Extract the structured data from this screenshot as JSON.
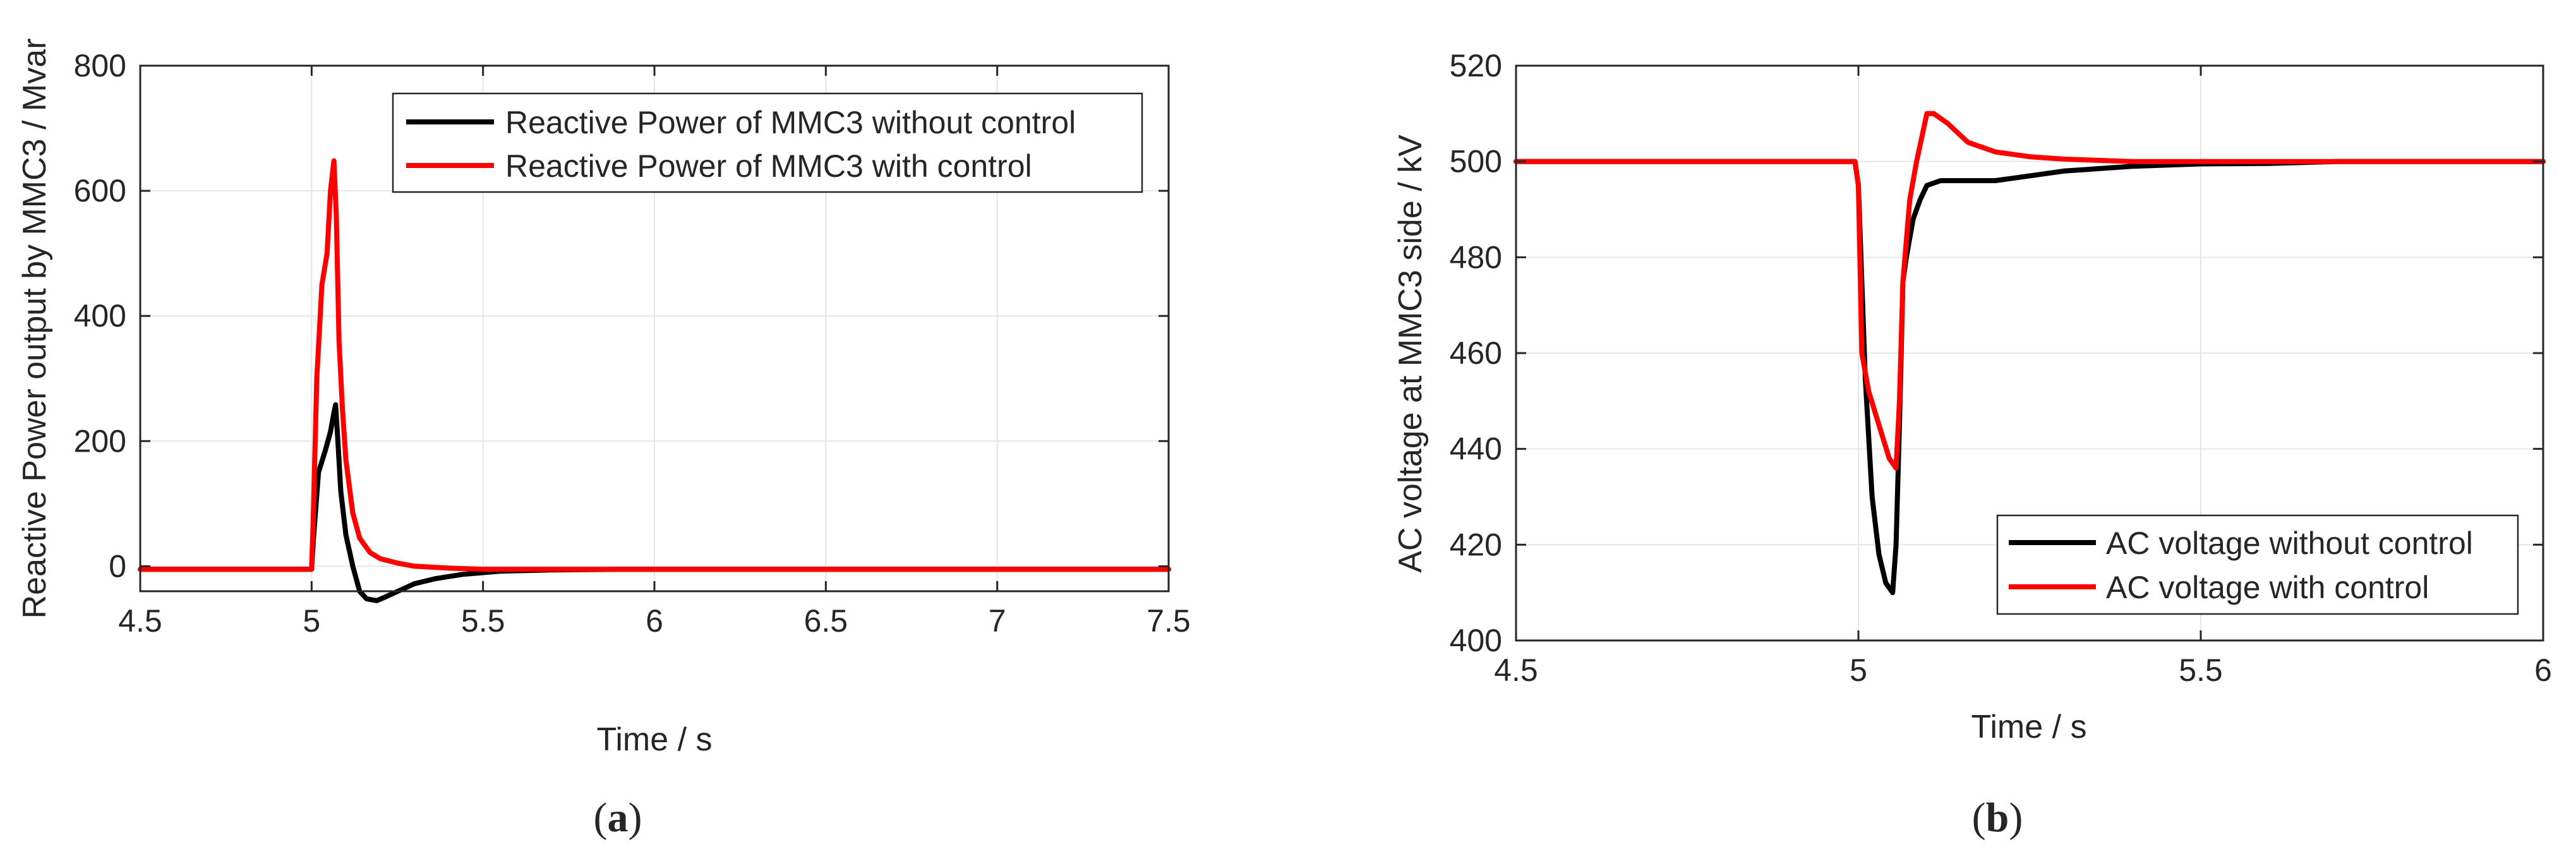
{
  "chart_data": [
    {
      "type": "line",
      "panel_label_open": "(",
      "panel_label_letter": "a",
      "panel_label_close": ")",
      "xlabel": "Time / s",
      "ylabel": "Reactive Power output by MMC3 / Mvar",
      "xlim": [
        4.5,
        7.5
      ],
      "ylim": [
        -40,
        800
      ],
      "xticks": [
        4.5,
        5,
        5.5,
        6,
        6.5,
        7,
        7.5
      ],
      "xtick_labels": [
        "4.5",
        "5",
        "5.5",
        "6",
        "6.5",
        "7",
        "7.5"
      ],
      "yticks": [
        0,
        200,
        400,
        600,
        800
      ],
      "ytick_labels": [
        "0",
        "200",
        "400",
        "600",
        "800"
      ],
      "grid": true,
      "legend_position": "top-right",
      "series": [
        {
          "name": "Reactive Power of MMC3 without control",
          "color": "#000000",
          "x": [
            4.5,
            5.0,
            5.005,
            5.02,
            5.04,
            5.055,
            5.065,
            5.07,
            5.075,
            5.085,
            5.1,
            5.12,
            5.14,
            5.16,
            5.19,
            5.22,
            5.26,
            5.3,
            5.36,
            5.44,
            5.55,
            5.7,
            5.9,
            6.2,
            7.5
          ],
          "y": [
            -5,
            -5,
            40,
            150,
            185,
            215,
            245,
            258,
            215,
            120,
            50,
            0,
            -40,
            -52,
            -55,
            -48,
            -38,
            -28,
            -20,
            -13,
            -8,
            -6,
            -5,
            -5,
            -5
          ]
        },
        {
          "name": "Reactive Power of MMC3 with control",
          "color": "#ff0000",
          "x": [
            4.5,
            5.0,
            5.005,
            5.015,
            5.03,
            5.045,
            5.055,
            5.065,
            5.072,
            5.08,
            5.09,
            5.1,
            5.12,
            5.14,
            5.17,
            5.2,
            5.25,
            5.3,
            5.4,
            5.5,
            5.6,
            7.5
          ],
          "y": [
            -5,
            -5,
            80,
            300,
            450,
            500,
            600,
            648,
            560,
            360,
            250,
            170,
            85,
            45,
            22,
            12,
            5,
            0,
            -3,
            -5,
            -5,
            -5
          ]
        }
      ]
    },
    {
      "type": "line",
      "panel_label_open": "(",
      "panel_label_letter": "b",
      "panel_label_close": ")",
      "xlabel": "Time / s",
      "ylabel": "AC voltage at MMC3 side / kV",
      "xlim": [
        4.5,
        6
      ],
      "ylim": [
        400,
        520
      ],
      "xticks": [
        4.5,
        5,
        5.5,
        6
      ],
      "xtick_labels": [
        "4.5",
        "5",
        "5.5",
        "6"
      ],
      "yticks": [
        400,
        420,
        440,
        460,
        480,
        500,
        520
      ],
      "ytick_labels": [
        "400",
        "420",
        "440",
        "460",
        "480",
        "500",
        "520"
      ],
      "grid": true,
      "legend_position": "bottom-right",
      "series": [
        {
          "name": "AC voltage without control",
          "color": "#000000",
          "x": [
            4.5,
            4.995,
            5.0,
            5.01,
            5.02,
            5.03,
            5.04,
            5.05,
            5.055,
            5.06,
            5.065,
            5.07,
            5.08,
            5.09,
            5.1,
            5.12,
            5.15,
            5.2,
            5.25,
            5.3,
            5.4,
            5.5,
            5.6,
            5.7,
            6.0
          ],
          "y": [
            500,
            500,
            495,
            455,
            430,
            418,
            412,
            410,
            420,
            445,
            475,
            480,
            488,
            492,
            495,
            496,
            496,
            496,
            497,
            498,
            499,
            499.5,
            499.6,
            500,
            500
          ]
        },
        {
          "name": "AC voltage with control",
          "color": "#ff0000",
          "x": [
            4.5,
            4.995,
            5.0,
            5.005,
            5.015,
            5.03,
            5.045,
            5.055,
            5.06,
            5.065,
            5.075,
            5.085,
            5.1,
            5.11,
            5.13,
            5.16,
            5.2,
            5.25,
            5.3,
            5.4,
            5.5,
            6.0
          ],
          "y": [
            500,
            500,
            495,
            460,
            452,
            445,
            438,
            436,
            450,
            475,
            492,
            500,
            510,
            510,
            508,
            504,
            502,
            501,
            500.5,
            500,
            500,
            500
          ]
        }
      ]
    }
  ]
}
